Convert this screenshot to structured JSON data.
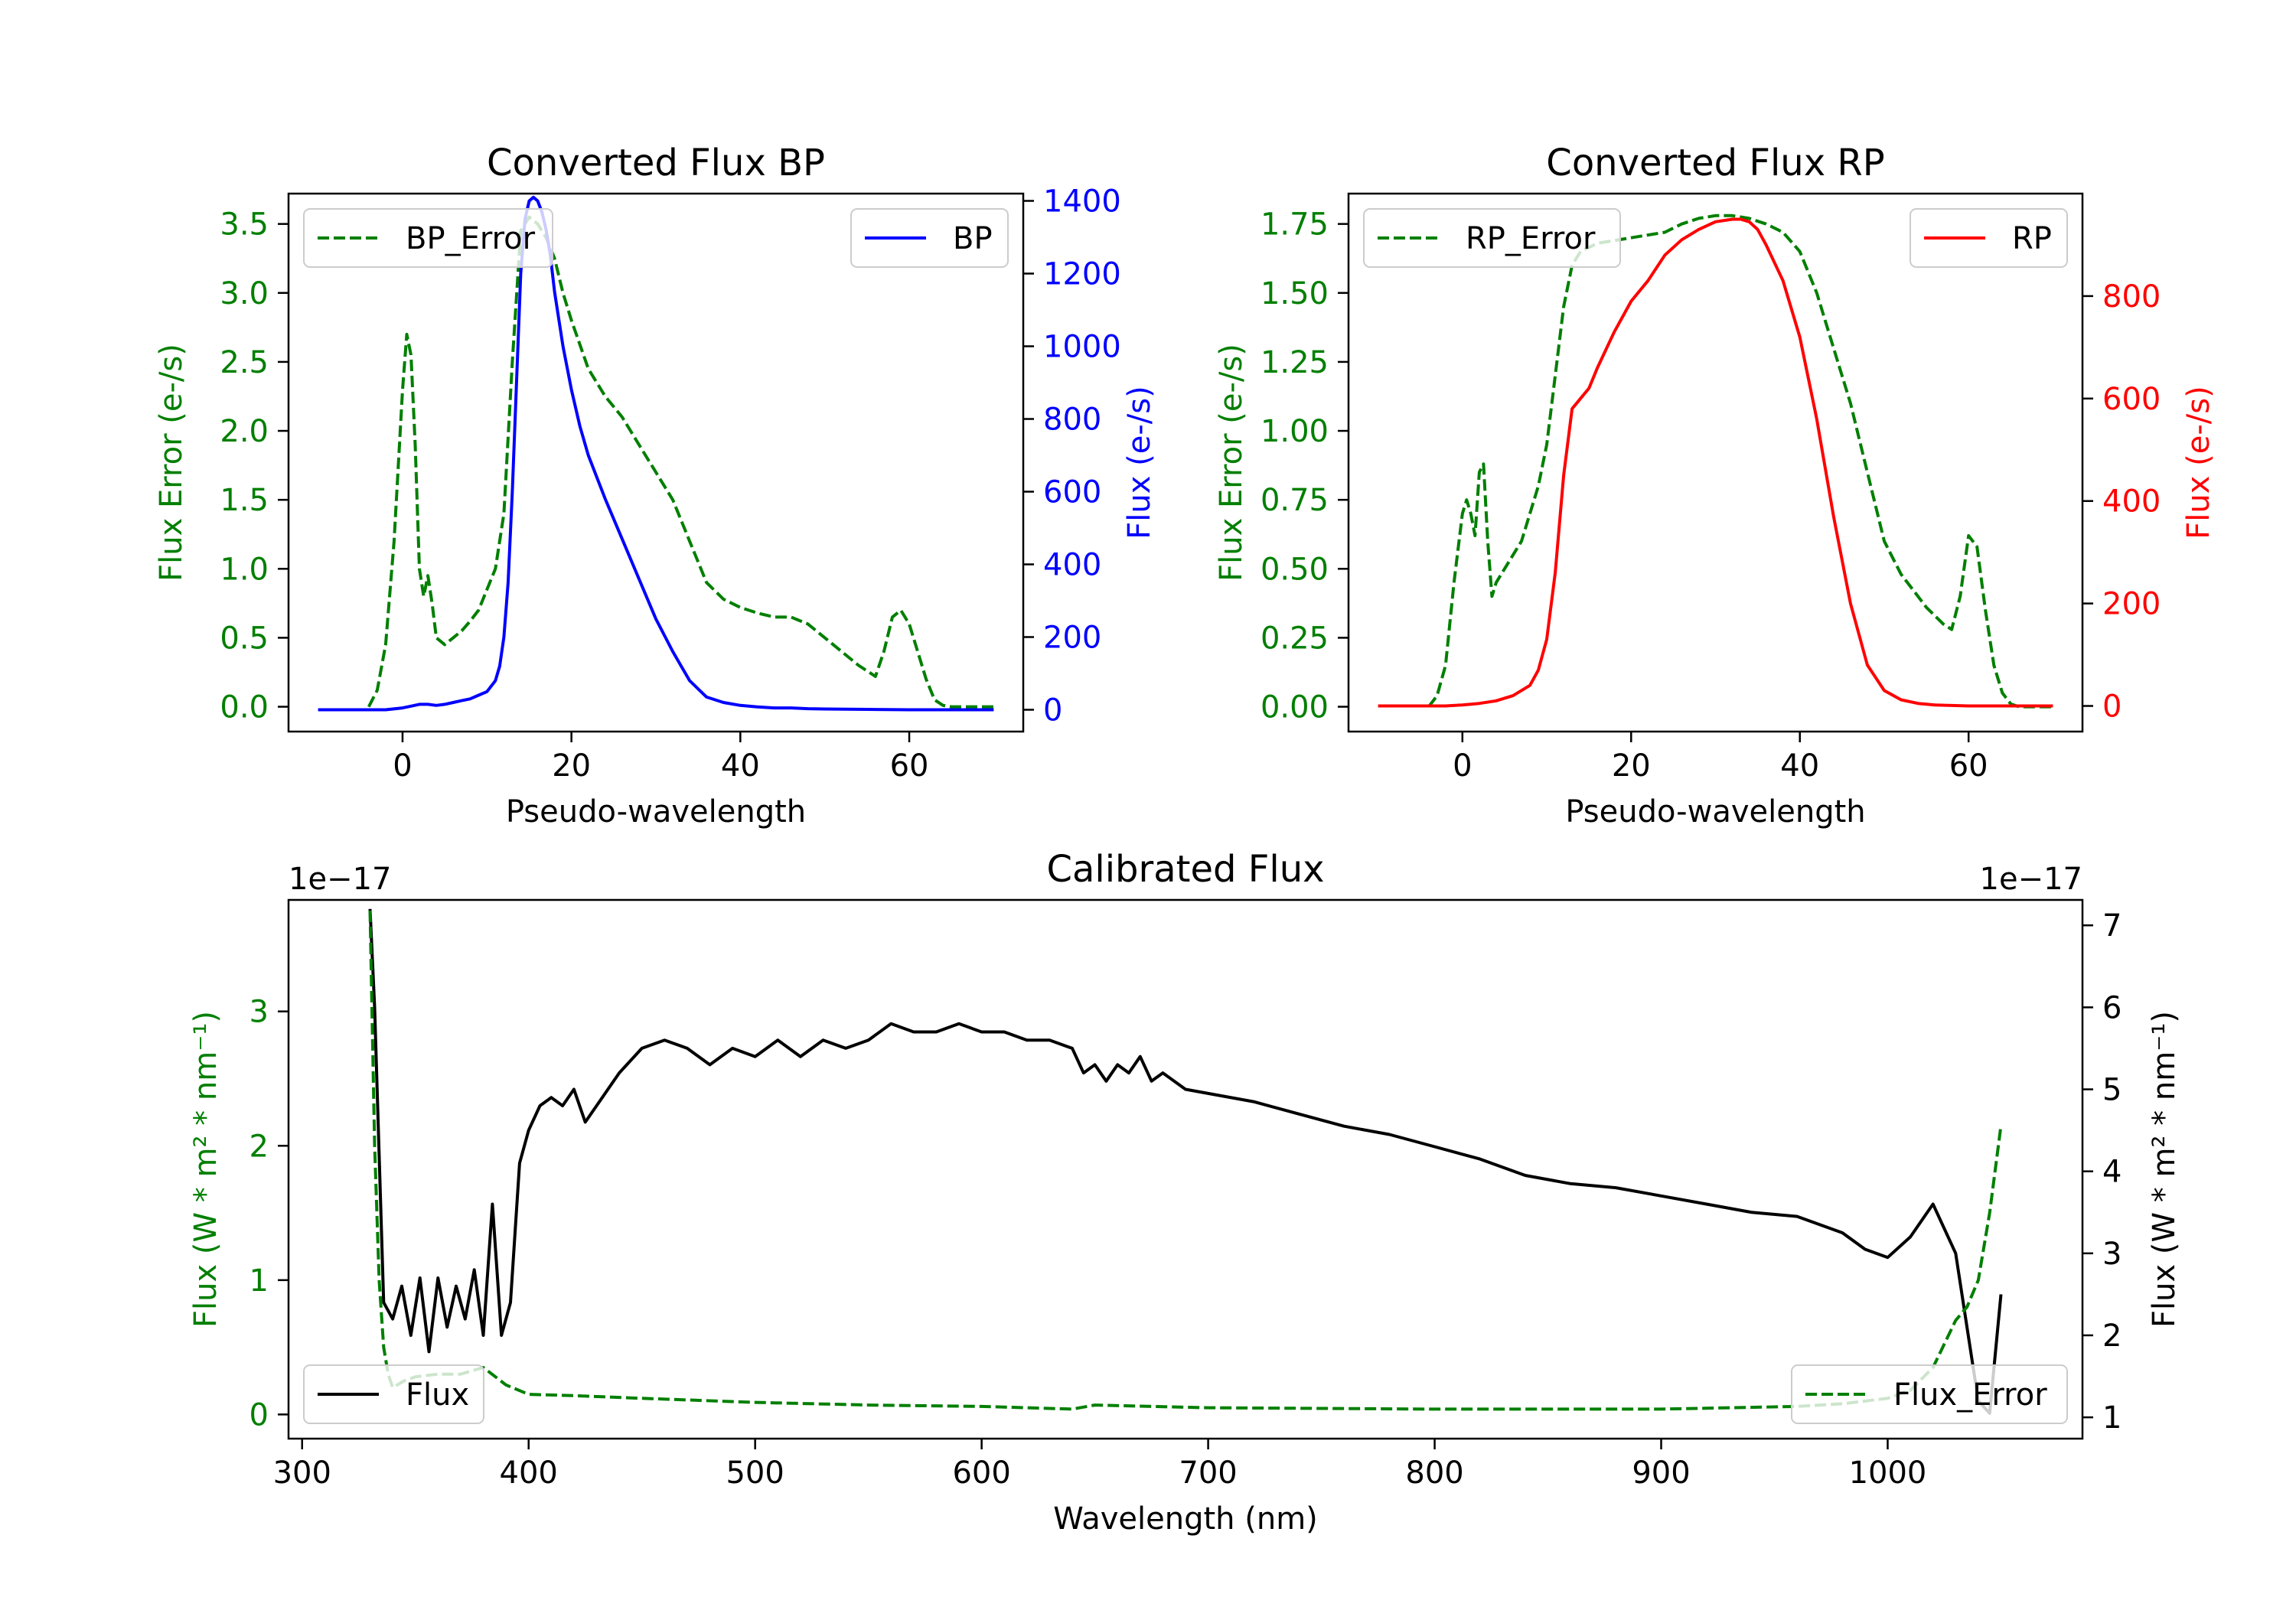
{
  "colors": {
    "axis": "#000000",
    "error": "#007f00",
    "bp": "#0000ff",
    "rp": "#ff0000",
    "flux": "#000000"
  },
  "chart_data": [
    {
      "type": "line",
      "title": "Converted Flux BP",
      "xlabel": "Pseudo-wavelength",
      "xlim": [
        -13.5,
        73.5
      ],
      "xticks": [
        0,
        20,
        40,
        60
      ],
      "left_axis": {
        "label": "Flux Error (e-/s)",
        "ylim": [
          -0.18,
          3.72
        ],
        "ticks": [
          0.0,
          0.5,
          1.0,
          1.5,
          2.0,
          2.5,
          3.0,
          3.5
        ],
        "tick_labels": [
          "0.0",
          "0.5",
          "1.0",
          "1.5",
          "2.0",
          "2.5",
          "3.0",
          "3.5"
        ],
        "color": "#007f00"
      },
      "right_axis": {
        "label": "Flux (e-/s)",
        "ylim": [
          -60,
          1420
        ],
        "ticks": [
          0,
          200,
          400,
          600,
          800,
          1000,
          1200,
          1400
        ],
        "tick_labels": [
          "0",
          "200",
          "400",
          "600",
          "800",
          "1000",
          "1200",
          "1400"
        ],
        "color": "#0000ff"
      },
      "series": [
        {
          "name": "BP_Error",
          "axis": "left",
          "style": "dashed",
          "color": "#007f00",
          "legend": "left",
          "x": [
            -4,
            -3,
            -2,
            -1,
            0,
            0.5,
            1,
            1.5,
            2,
            2.5,
            3,
            3.5,
            4,
            5,
            6,
            7,
            8,
            9,
            10,
            11,
            12,
            13,
            14,
            15,
            16,
            17,
            18,
            19,
            20,
            22,
            24,
            26,
            28,
            30,
            32,
            34,
            36,
            38,
            40,
            42,
            44,
            46,
            48,
            50,
            52,
            54,
            56,
            57,
            58,
            59,
            60,
            61,
            62,
            63,
            64,
            65,
            66,
            68,
            70
          ],
          "y": [
            0.0,
            0.12,
            0.45,
            1.2,
            2.3,
            2.7,
            2.55,
            1.9,
            1.0,
            0.8,
            0.95,
            0.75,
            0.5,
            0.45,
            0.5,
            0.55,
            0.62,
            0.7,
            0.85,
            1.0,
            1.4,
            2.5,
            3.45,
            3.55,
            3.5,
            3.4,
            3.25,
            3.0,
            2.8,
            2.45,
            2.25,
            2.1,
            1.9,
            1.7,
            1.5,
            1.2,
            0.9,
            0.78,
            0.72,
            0.68,
            0.65,
            0.65,
            0.6,
            0.5,
            0.4,
            0.3,
            0.22,
            0.4,
            0.65,
            0.7,
            0.6,
            0.4,
            0.2,
            0.05,
            0.01,
            0.0,
            0.0,
            0.0,
            0.0
          ]
        },
        {
          "name": "BP",
          "axis": "right",
          "style": "solid",
          "color": "#0000ff",
          "legend": "right",
          "x": [
            -10,
            -8,
            -6,
            -4,
            -2,
            0,
            1,
            2,
            3,
            4,
            5,
            6,
            7,
            8,
            9,
            10,
            11,
            11.5,
            12,
            12.5,
            13,
            13.5,
            14,
            14.5,
            15,
            15.5,
            16,
            16.5,
            17,
            17.5,
            18,
            19,
            20,
            21,
            22,
            24,
            26,
            28,
            30,
            32,
            34,
            36,
            38,
            40,
            42,
            44,
            46,
            48,
            50,
            55,
            60,
            65,
            70
          ],
          "y": [
            0,
            0,
            0,
            0,
            0,
            5,
            10,
            15,
            15,
            12,
            15,
            20,
            25,
            30,
            40,
            50,
            80,
            120,
            200,
            350,
            600,
            900,
            1200,
            1350,
            1400,
            1410,
            1400,
            1370,
            1320,
            1250,
            1150,
            1000,
            880,
            780,
            700,
            580,
            470,
            360,
            250,
            160,
            80,
            35,
            20,
            12,
            8,
            5,
            5,
            3,
            2,
            1,
            0,
            0,
            0
          ]
        }
      ]
    },
    {
      "type": "line",
      "title": "Converted Flux RP",
      "xlabel": "Pseudo-wavelength",
      "xlim": [
        -13.5,
        73.5
      ],
      "xticks": [
        0,
        20,
        40,
        60
      ],
      "left_axis": {
        "label": "Flux Error (e-/s)",
        "ylim": [
          -0.09,
          1.86
        ],
        "ticks": [
          0.0,
          0.25,
          0.5,
          0.75,
          1.0,
          1.25,
          1.5,
          1.75
        ],
        "tick_labels": [
          "0.00",
          "0.25",
          "0.50",
          "0.75",
          "1.00",
          "1.25",
          "1.50",
          "1.75"
        ],
        "color": "#007f00"
      },
      "right_axis": {
        "label": "Flux (e-/s)",
        "ylim": [
          -50,
          1000
        ],
        "ticks": [
          0,
          200,
          400,
          600,
          800
        ],
        "tick_labels": [
          "0",
          "200",
          "400",
          "600",
          "800"
        ],
        "color": "#ff0000"
      },
      "series": [
        {
          "name": "RP_Error",
          "axis": "left",
          "style": "dashed",
          "color": "#007f00",
          "legend": "left",
          "x": [
            -4,
            -3,
            -2,
            -1,
            0,
            0.5,
            1,
            1.5,
            2,
            2.5,
            3,
            3.5,
            4,
            5,
            6,
            7,
            8,
            9,
            10,
            11,
            12,
            13,
            14,
            16,
            18,
            20,
            22,
            24,
            26,
            28,
            30,
            32,
            34,
            36,
            38,
            40,
            42,
            44,
            46,
            48,
            50,
            52,
            54,
            55,
            56,
            57,
            58,
            59,
            60,
            61,
            62,
            63,
            64,
            65,
            66,
            68,
            70
          ],
          "y": [
            0.0,
            0.04,
            0.15,
            0.45,
            0.7,
            0.75,
            0.7,
            0.62,
            0.85,
            0.88,
            0.6,
            0.4,
            0.45,
            0.5,
            0.55,
            0.6,
            0.7,
            0.8,
            0.95,
            1.2,
            1.45,
            1.6,
            1.65,
            1.68,
            1.69,
            1.7,
            1.71,
            1.72,
            1.75,
            1.77,
            1.78,
            1.78,
            1.77,
            1.75,
            1.72,
            1.65,
            1.5,
            1.3,
            1.1,
            0.85,
            0.6,
            0.48,
            0.4,
            0.36,
            0.33,
            0.3,
            0.28,
            0.4,
            0.62,
            0.58,
            0.35,
            0.15,
            0.05,
            0.01,
            0.0,
            0.0,
            0.0
          ]
        },
        {
          "name": "RP",
          "axis": "right",
          "style": "solid",
          "color": "#ff0000",
          "legend": "right",
          "x": [
            -10,
            -8,
            -6,
            -4,
            -2,
            0,
            2,
            4,
            6,
            8,
            9,
            10,
            11,
            12,
            13,
            14,
            15,
            16,
            18,
            20,
            22,
            24,
            26,
            28,
            30,
            32,
            33,
            34,
            35,
            36,
            38,
            40,
            42,
            44,
            46,
            48,
            50,
            52,
            54,
            56,
            58,
            60,
            62,
            64,
            66,
            68,
            70
          ],
          "y": [
            0,
            0,
            0,
            0,
            0,
            2,
            5,
            10,
            20,
            40,
            70,
            130,
            260,
            450,
            580,
            600,
            620,
            660,
            730,
            790,
            830,
            880,
            910,
            930,
            945,
            950,
            950,
            945,
            930,
            900,
            830,
            720,
            560,
            370,
            200,
            80,
            30,
            12,
            5,
            2,
            1,
            0,
            0,
            0,
            0,
            0,
            0
          ]
        }
      ]
    },
    {
      "type": "line",
      "title": "Calibrated Flux",
      "xlabel": "Wavelength (nm)",
      "xlim": [
        294,
        1086
      ],
      "xticks": [
        300,
        400,
        500,
        600,
        700,
        800,
        900,
        1000
      ],
      "left_axis": {
        "label": "Flux (W * m² * nm⁻¹)",
        "ylim": [
          -0.18,
          3.83
        ],
        "ticks": [
          0,
          1,
          2,
          3
        ],
        "tick_labels": [
          "0",
          "1",
          "2",
          "3"
        ],
        "color": "#007f00",
        "offset_text": "1e−17"
      },
      "right_axis": {
        "label": "Flux (W * m² * nm⁻¹)",
        "ylim": [
          0.74,
          7.31
        ],
        "ticks": [
          1,
          2,
          3,
          4,
          5,
          6,
          7
        ],
        "tick_labels": [
          "1",
          "2",
          "3",
          "4",
          "5",
          "6",
          "7"
        ],
        "color": "#000000",
        "offset_text": "1e−17"
      },
      "series": [
        {
          "name": "Flux",
          "axis": "right",
          "style": "solid",
          "color": "#000000",
          "legend": "lower-left",
          "x": [
            330,
            332,
            336,
            340,
            344,
            348,
            352,
            356,
            360,
            364,
            368,
            372,
            376,
            380,
            384,
            388,
            392,
            396,
            400,
            405,
            410,
            415,
            420,
            425,
            430,
            440,
            450,
            460,
            470,
            480,
            490,
            500,
            510,
            520,
            530,
            540,
            550,
            560,
            570,
            580,
            590,
            600,
            610,
            620,
            630,
            640,
            645,
            650,
            655,
            660,
            665,
            670,
            675,
            680,
            690,
            700,
            720,
            740,
            760,
            780,
            800,
            820,
            840,
            860,
            880,
            900,
            920,
            940,
            960,
            980,
            990,
            1000,
            1010,
            1020,
            1030,
            1040,
            1045,
            1050
          ],
          "y": [
            7.2,
            6.0,
            2.4,
            2.2,
            2.6,
            2.0,
            2.7,
            1.8,
            2.7,
            2.1,
            2.6,
            2.2,
            2.8,
            2.0,
            3.6,
            2.0,
            2.4,
            4.1,
            4.5,
            4.8,
            4.9,
            4.8,
            5.0,
            4.6,
            4.8,
            5.2,
            5.5,
            5.6,
            5.5,
            5.3,
            5.5,
            5.4,
            5.6,
            5.4,
            5.6,
            5.5,
            5.6,
            5.8,
            5.7,
            5.7,
            5.8,
            5.7,
            5.7,
            5.6,
            5.6,
            5.5,
            5.2,
            5.3,
            5.1,
            5.3,
            5.2,
            5.4,
            5.1,
            5.2,
            5.0,
            4.95,
            4.85,
            4.7,
            4.55,
            4.45,
            4.3,
            4.15,
            3.95,
            3.85,
            3.8,
            3.7,
            3.6,
            3.5,
            3.45,
            3.25,
            3.05,
            2.95,
            3.2,
            3.6,
            3.0,
            1.2,
            1.05,
            2.5
          ]
        },
        {
          "name": "Flux_Error",
          "axis": "left",
          "style": "dashed",
          "color": "#007f00",
          "legend": "lower-right",
          "x": [
            330,
            332,
            334,
            336,
            338,
            340,
            345,
            350,
            360,
            370,
            380,
            390,
            400,
            420,
            450,
            500,
            550,
            600,
            640,
            650,
            700,
            800,
            900,
            960,
            980,
            1000,
            1010,
            1020,
            1030,
            1035,
            1040,
            1045,
            1050
          ],
          "y": [
            3.75,
            2.0,
            1.0,
            0.5,
            0.3,
            0.2,
            0.25,
            0.28,
            0.3,
            0.3,
            0.35,
            0.22,
            0.15,
            0.14,
            0.12,
            0.09,
            0.07,
            0.06,
            0.04,
            0.07,
            0.05,
            0.04,
            0.04,
            0.06,
            0.08,
            0.12,
            0.18,
            0.35,
            0.7,
            0.8,
            1.0,
            1.5,
            2.15
          ]
        }
      ]
    }
  ]
}
